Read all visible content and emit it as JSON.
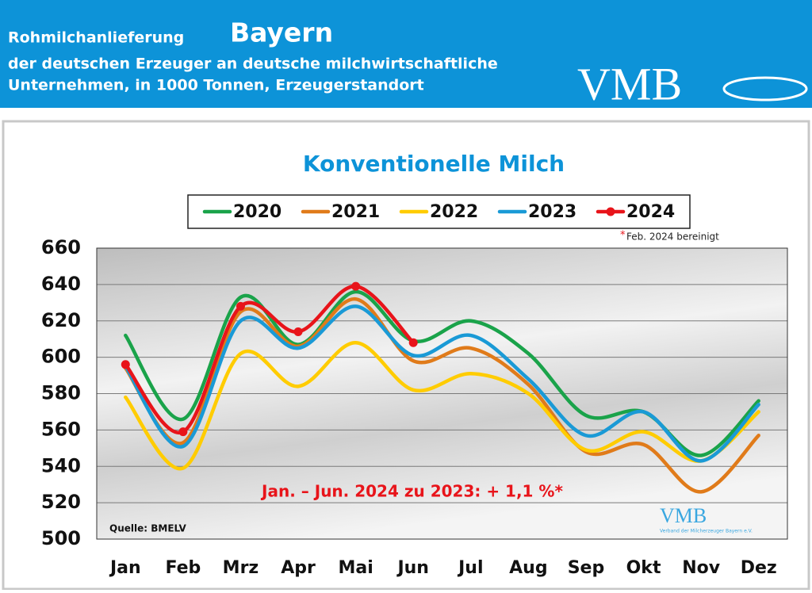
{
  "header": {
    "title": "Rohmilchanlieferung",
    "region": "Bayern",
    "subtitle_1": "der deutschen Erzeuger an deutsche milchwirtschaftliche",
    "subtitle_2": "Unternehmen, in 1000 Tonnen, Erzeugerstandort",
    "logo": "VMB"
  },
  "chart_data": {
    "type": "line",
    "title": "Konventionelle Milch",
    "categories": [
      "Jan",
      "Feb",
      "Mrz",
      "Apr",
      "Mai",
      "Jun",
      "Jul",
      "Aug",
      "Sep",
      "Okt",
      "Nov",
      "Dez"
    ],
    "series": [
      {
        "name": "2020",
        "color": "#1aa34a",
        "values": [
          612,
          566,
          633,
          607,
          636,
          609,
          620,
          602,
          568,
          570,
          546,
          576
        ]
      },
      {
        "name": "2021",
        "color": "#e07b1a",
        "values": [
          594,
          553,
          625,
          606,
          632,
          598,
          605,
          585,
          548,
          552,
          526,
          557
        ]
      },
      {
        "name": "2022",
        "color": "#ffcc00",
        "values": [
          578,
          539,
          602,
          584,
          608,
          582,
          591,
          580,
          549,
          559,
          543,
          570
        ]
      },
      {
        "name": "2023",
        "color": "#1a9ad6",
        "values": [
          595,
          551,
          620,
          605,
          628,
          601,
          612,
          588,
          557,
          570,
          543,
          574
        ]
      },
      {
        "name": "2024",
        "color": "#e8141a",
        "markers": true,
        "values": [
          596,
          559,
          628,
          614,
          639,
          608,
          null,
          null,
          null,
          null,
          null,
          null
        ]
      }
    ],
    "ylim": [
      500,
      660
    ],
    "yticks": [
      500,
      520,
      540,
      560,
      580,
      600,
      620,
      640,
      660
    ],
    "grid": true,
    "note_marker": "*",
    "note": "Feb. 2024 bereinigt",
    "annotation": "Jan. – Jun. 2024 zu 2023: + 1,1 %*",
    "source": "Quelle: BMELV",
    "logo_small": "VMB",
    "logo_small_caption": "Verband der Milcherzeuger Bayern e.V."
  }
}
